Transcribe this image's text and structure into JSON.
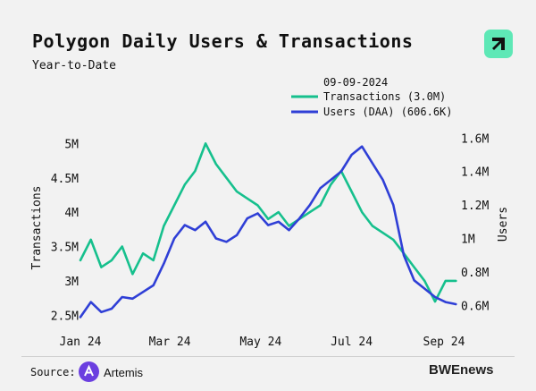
{
  "header": {
    "title": "Polygon Daily Users & Transactions",
    "subtitle": "Year-to-Date"
  },
  "footer": {
    "source_label": "Source:",
    "provider": "Artemis",
    "watermark": "BWEnews"
  },
  "colors": {
    "transactions": "#16c08d",
    "users": "#2f3fd6",
    "logo": "#5ee8b6",
    "artemis": "#6b3fe0"
  },
  "chart_data": {
    "type": "line",
    "title": "Polygon Daily Users & Transactions",
    "subtitle": "Year-to-Date",
    "legend": {
      "date": "09-09-2024",
      "placement": "top-right",
      "entries": [
        "Transactions (3.0M)",
        "Users (DAA) (606.6K)"
      ]
    },
    "x_ticks": [
      "Jan 24",
      "Mar 24",
      "May 24",
      "Jul 24",
      "Sep 24"
    ],
    "x_range": [
      "2024-01-01",
      "2024-09-10"
    ],
    "y_left": {
      "label": "Transactions",
      "ticks": [
        "2.5M",
        "3M",
        "3.5M",
        "4M",
        "4.5M",
        "5M"
      ],
      "range": [
        2.4,
        5.2
      ],
      "unit": "M"
    },
    "y_right": {
      "label": "Users",
      "ticks": [
        "0.6M",
        "0.8M",
        "1M",
        "1.2M",
        "1.4M",
        "1.6M"
      ],
      "range": [
        0.5,
        1.65
      ],
      "unit": "M"
    },
    "grid": false,
    "series": [
      {
        "name": "Transactions",
        "axis": "left",
        "x": [
          "2024-01-01",
          "2024-01-08",
          "2024-01-15",
          "2024-01-22",
          "2024-01-29",
          "2024-02-05",
          "2024-02-12",
          "2024-02-19",
          "2024-02-26",
          "2024-03-04",
          "2024-03-11",
          "2024-03-18",
          "2024-03-25",
          "2024-04-01",
          "2024-04-08",
          "2024-04-15",
          "2024-04-22",
          "2024-04-29",
          "2024-05-06",
          "2024-05-13",
          "2024-05-20",
          "2024-05-27",
          "2024-06-03",
          "2024-06-10",
          "2024-06-17",
          "2024-06-24",
          "2024-07-01",
          "2024-07-08",
          "2024-07-15",
          "2024-07-22",
          "2024-07-29",
          "2024-08-05",
          "2024-08-12",
          "2024-08-19",
          "2024-08-26",
          "2024-09-02",
          "2024-09-09"
        ],
        "values": [
          3.3,
          3.6,
          3.2,
          3.3,
          3.5,
          3.1,
          3.4,
          3.3,
          3.8,
          4.1,
          4.4,
          4.6,
          5.0,
          4.7,
          4.5,
          4.3,
          4.2,
          4.1,
          3.9,
          4.0,
          3.8,
          3.9,
          4.0,
          4.1,
          4.4,
          4.6,
          4.3,
          4.0,
          3.8,
          3.7,
          3.6,
          3.4,
          3.2,
          3.0,
          2.7,
          3.0,
          3.0
        ]
      },
      {
        "name": "Users (DAA)",
        "axis": "right",
        "x": [
          "2024-01-01",
          "2024-01-08",
          "2024-01-15",
          "2024-01-22",
          "2024-01-29",
          "2024-02-05",
          "2024-02-12",
          "2024-02-19",
          "2024-02-26",
          "2024-03-04",
          "2024-03-11",
          "2024-03-18",
          "2024-03-25",
          "2024-04-01",
          "2024-04-08",
          "2024-04-15",
          "2024-04-22",
          "2024-04-29",
          "2024-05-06",
          "2024-05-13",
          "2024-05-20",
          "2024-05-27",
          "2024-06-03",
          "2024-06-10",
          "2024-06-17",
          "2024-06-24",
          "2024-07-01",
          "2024-07-08",
          "2024-07-15",
          "2024-07-22",
          "2024-07-29",
          "2024-08-05",
          "2024-08-12",
          "2024-08-19",
          "2024-08-26",
          "2024-09-02",
          "2024-09-09"
        ],
        "values": [
          0.53,
          0.62,
          0.56,
          0.58,
          0.65,
          0.64,
          0.68,
          0.72,
          0.85,
          1.0,
          1.08,
          1.05,
          1.1,
          1.0,
          0.98,
          1.02,
          1.12,
          1.15,
          1.08,
          1.1,
          1.05,
          1.12,
          1.2,
          1.3,
          1.35,
          1.4,
          1.5,
          1.55,
          1.45,
          1.35,
          1.2,
          0.9,
          0.75,
          0.7,
          0.65,
          0.62,
          0.607
        ]
      }
    ]
  }
}
